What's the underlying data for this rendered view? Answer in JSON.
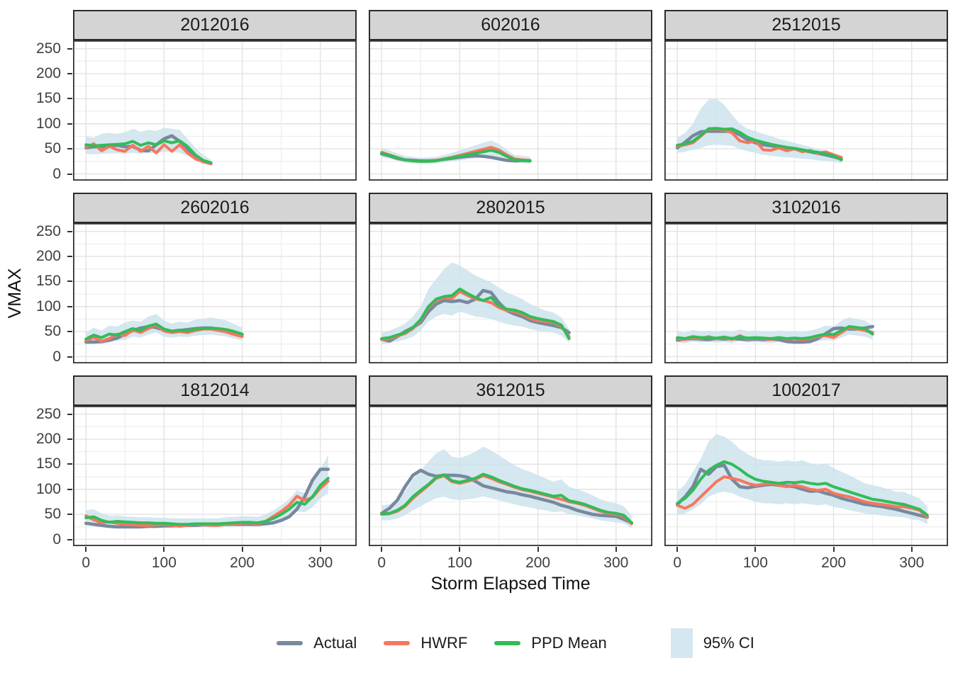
{
  "chart_data": {
    "type": "line",
    "xlabel": "Storm Elapsed Time",
    "ylabel": "VMAX",
    "x_ticks": [
      0,
      100,
      200,
      300
    ],
    "y_ticks": [
      0,
      50,
      100,
      150,
      200,
      250
    ],
    "x_minor_ticks": [
      50,
      150,
      250,
      350
    ],
    "y_minor_ticks": [
      25,
      75,
      125,
      175,
      225
    ],
    "x_domain": [
      -16.5,
      346.5
    ],
    "y_domain": [
      -13.5,
      266.5
    ],
    "grid": true,
    "legend_position": "bottom",
    "series_names": [
      "Actual",
      "HWRF",
      "PPD Mean"
    ],
    "ci_name": "95% CI",
    "colors": {
      "actual": "#78889E",
      "hwrf": "#F8765C",
      "ppd_mean": "#31BC58",
      "ci_fill": "#CAE1EB",
      "ci_legend": "#D5E7F0",
      "strip_bg": "#D4D4D4",
      "strip_border": "#2B2B2B",
      "panel_border": "#333333",
      "grid_major": "#E3E3E3",
      "grid_minor": "#EDEDED",
      "tick_text": "#404040",
      "title_text": "#111111"
    },
    "facets": [
      {
        "title": "2012016",
        "x_start": 0,
        "x_step": 10,
        "actual": [
          52,
          54,
          54,
          56,
          57,
          54,
          55,
          47,
          46,
          58,
          70,
          76,
          65,
          50,
          35,
          26,
          21
        ],
        "hwrf": [
          53,
          60,
          46,
          55,
          48,
          45,
          57,
          45,
          55,
          42,
          58,
          45,
          58,
          42,
          30,
          24,
          20
        ],
        "ppd_mean": [
          58,
          56,
          57,
          58,
          59,
          60,
          65,
          57,
          62,
          58,
          66,
          62,
          66,
          55,
          38,
          27,
          22
        ],
        "ci_lower": [
          40,
          39,
          40,
          41,
          41,
          40,
          42,
          40,
          42,
          41,
          44,
          44,
          42,
          36,
          28,
          22,
          17
        ],
        "ci_upper": [
          75,
          72,
          80,
          82,
          80,
          83,
          90,
          84,
          88,
          86,
          92,
          90,
          88,
          70,
          52,
          38,
          28
        ]
      },
      {
        "title": "602016",
        "x_start": 0,
        "x_step": 10,
        "actual": [
          40,
          36,
          31,
          28,
          27,
          26,
          26,
          27,
          29,
          31,
          33,
          35,
          36,
          35,
          33,
          30,
          27,
          26,
          27,
          26
        ],
        "hwrf": [
          43,
          38,
          33,
          28,
          26,
          25,
          26,
          27,
          30,
          33,
          37,
          41,
          45,
          49,
          53,
          48,
          38,
          30,
          28,
          27
        ],
        "ppd_mean": [
          41,
          37,
          32,
          28,
          26,
          25,
          25,
          26,
          29,
          32,
          35,
          38,
          41,
          44,
          47,
          43,
          35,
          28,
          27,
          26
        ],
        "ci_lower": [
          33,
          30,
          26,
          22,
          21,
          20,
          20,
          21,
          23,
          25,
          27,
          29,
          31,
          33,
          35,
          32,
          27,
          22,
          21,
          20
        ],
        "ci_upper": [
          52,
          47,
          41,
          36,
          34,
          32,
          33,
          34,
          38,
          42,
          47,
          52,
          57,
          62,
          67,
          60,
          48,
          38,
          36,
          34
        ]
      },
      {
        "title": "2512015",
        "x_start": 0,
        "x_step": 10,
        "actual": [
          52,
          63,
          76,
          84,
          85,
          85,
          85,
          85,
          78,
          68,
          62,
          58,
          56,
          54,
          52,
          50,
          47,
          44,
          41,
          38,
          34,
          30
        ],
        "hwrf": [
          55,
          58,
          62,
          75,
          89,
          90,
          87,
          82,
          66,
          62,
          66,
          48,
          47,
          52,
          46,
          50,
          44,
          47,
          41,
          44,
          38,
          33
        ],
        "ppd_mean": [
          57,
          60,
          65,
          77,
          90,
          91,
          89,
          90,
          83,
          73,
          67,
          63,
          59,
          56,
          53,
          51,
          48,
          45,
          43,
          40,
          36,
          28
        ],
        "ci_lower": [
          42,
          44,
          48,
          52,
          57,
          58,
          57,
          56,
          50,
          45,
          42,
          38,
          36,
          34,
          33,
          32,
          30,
          29,
          27,
          26,
          24,
          21
        ],
        "ci_upper": [
          72,
          82,
          100,
          130,
          148,
          150,
          138,
          118,
          100,
          90,
          85,
          80,
          75,
          70,
          66,
          62,
          58,
          54,
          50,
          46,
          42,
          36
        ]
      },
      {
        "title": "2602016",
        "x_start": 0,
        "x_step": 10,
        "actual": [
          29,
          29,
          30,
          33,
          37,
          45,
          52,
          57,
          60,
          58,
          53,
          50,
          52,
          54,
          56,
          57,
          57,
          55,
          52,
          48,
          44
        ],
        "hwrf": [
          32,
          38,
          31,
          36,
          45,
          42,
          53,
          48,
          56,
          63,
          51,
          48,
          50,
          48,
          52,
          55,
          55,
          52,
          49,
          44,
          40
        ],
        "ppd_mean": [
          35,
          43,
          38,
          45,
          43,
          50,
          56,
          52,
          61,
          65,
          55,
          51,
          53,
          51,
          55,
          56,
          57,
          56,
          54,
          50,
          45
        ],
        "ci_lower": [
          25,
          28,
          25,
          28,
          32,
          33,
          40,
          38,
          44,
          48,
          40,
          38,
          40,
          39,
          42,
          43,
          44,
          42,
          40,
          36,
          32
        ],
        "ci_upper": [
          48,
          58,
          52,
          62,
          60,
          68,
          72,
          70,
          80,
          85,
          72,
          66,
          70,
          68,
          74,
          76,
          78,
          75,
          72,
          65,
          58
        ]
      },
      {
        "title": "2802015",
        "x_start": 0,
        "x_step": 10,
        "actual": [
          35,
          31,
          40,
          50,
          58,
          68,
          90,
          105,
          112,
          110,
          112,
          108,
          115,
          132,
          128,
          108,
          92,
          85,
          80,
          72,
          68,
          65,
          62,
          58,
          48
        ],
        "hwrf": [
          34,
          36,
          41,
          46,
          56,
          72,
          98,
          112,
          118,
          116,
          130,
          122,
          115,
          112,
          108,
          98,
          92,
          90,
          85,
          76,
          72,
          70,
          68,
          60,
          40
        ],
        "ppd_mean": [
          36,
          38,
          43,
          48,
          58,
          74,
          100,
          115,
          120,
          122,
          135,
          126,
          118,
          112,
          118,
          102,
          95,
          93,
          88,
          80,
          76,
          73,
          70,
          63,
          36
        ],
        "ci_lower": [
          25,
          27,
          30,
          34,
          40,
          52,
          70,
          80,
          85,
          82,
          90,
          85,
          80,
          78,
          75,
          70,
          65,
          62,
          60,
          55,
          52,
          50,
          48,
          42,
          28
        ],
        "ci_upper": [
          48,
          52,
          58,
          66,
          80,
          100,
          135,
          155,
          175,
          188,
          182,
          172,
          162,
          155,
          148,
          138,
          128,
          122,
          115,
          105,
          98,
          92,
          88,
          78,
          55
        ]
      },
      {
        "title": "3102016",
        "x_start": 0,
        "x_step": 10,
        "actual": [
          33,
          35,
          36,
          35,
          34,
          36,
          35,
          36,
          35,
          34,
          35,
          34,
          35,
          34,
          30,
          29,
          29,
          30,
          36,
          46,
          56,
          57,
          55,
          55,
          57,
          60
        ],
        "hwrf": [
          36,
          34,
          38,
          36,
          40,
          35,
          38,
          34,
          42,
          35,
          38,
          36,
          34,
          38,
          35,
          36,
          34,
          36,
          40,
          42,
          38,
          48,
          58,
          55,
          52,
          48
        ],
        "ppd_mean": [
          38,
          36,
          40,
          38,
          38,
          37,
          39,
          36,
          40,
          37,
          38,
          37,
          36,
          38,
          36,
          37,
          36,
          38,
          42,
          45,
          44,
          52,
          60,
          58,
          56,
          45
        ],
        "ci_lower": [
          28,
          27,
          30,
          28,
          29,
          28,
          29,
          27,
          31,
          28,
          29,
          28,
          27,
          29,
          27,
          28,
          27,
          28,
          31,
          33,
          32,
          38,
          44,
          42,
          40,
          34
        ],
        "ci_upper": [
          50,
          48,
          53,
          50,
          52,
          50,
          52,
          49,
          55,
          50,
          52,
          50,
          49,
          52,
          50,
          51,
          49,
          52,
          56,
          62,
          60,
          72,
          78,
          75,
          72,
          62
        ]
      },
      {
        "title": "1812014",
        "x_start": 0,
        "x_step": 10,
        "actual": [
          32,
          30,
          28,
          26,
          25,
          25,
          25,
          25,
          26,
          26,
          27,
          27,
          28,
          28,
          28,
          29,
          29,
          30,
          30,
          30,
          30,
          30,
          30,
          31,
          33,
          38,
          45,
          60,
          85,
          118,
          140,
          140
        ],
        "hwrf": [
          47,
          39,
          33,
          35,
          32,
          30,
          29,
          28,
          28,
          29,
          30,
          28,
          26,
          28,
          30,
          29,
          28,
          28,
          30,
          31,
          32,
          33,
          31,
          36,
          46,
          56,
          68,
          86,
          78,
          84,
          102,
          116
        ],
        "ppd_mean": [
          43,
          45,
          38,
          34,
          36,
          35,
          34,
          33,
          33,
          32,
          32,
          31,
          30,
          30,
          31,
          31,
          31,
          31,
          32,
          33,
          34,
          34,
          33,
          36,
          42,
          50,
          60,
          74,
          70,
          85,
          108,
          122
        ],
        "ci_lower": [
          33,
          34,
          30,
          27,
          28,
          27,
          26,
          26,
          26,
          25,
          25,
          24,
          24,
          24,
          24,
          24,
          24,
          24,
          25,
          26,
          26,
          26,
          25,
          28,
          32,
          38,
          46,
          56,
          54,
          64,
          82,
          92
        ],
        "ci_upper": [
          58,
          60,
          52,
          47,
          48,
          46,
          45,
          44,
          44,
          43,
          43,
          42,
          42,
          42,
          42,
          42,
          42,
          42,
          44,
          45,
          46,
          46,
          45,
          50,
          58,
          68,
          80,
          98,
          92,
          112,
          140,
          168
        ]
      },
      {
        "title": "3612015",
        "x_start": 0,
        "x_step": 10,
        "actual": [
          52,
          62,
          78,
          105,
          128,
          138,
          130,
          126,
          128,
          128,
          127,
          124,
          116,
          107,
          103,
          99,
          95,
          93,
          89,
          86,
          82,
          78,
          74,
          68,
          64,
          58,
          54,
          50,
          48,
          47,
          46,
          40,
          33
        ],
        "hwrf": [
          50,
          51,
          56,
          66,
          82,
          95,
          108,
          122,
          127,
          115,
          112,
          116,
          120,
          127,
          122,
          115,
          110,
          104,
          99,
          96,
          92,
          88,
          84,
          80,
          75,
          72,
          68,
          62,
          56,
          52,
          50,
          46,
          31
        ],
        "ppd_mean": [
          51,
          52,
          58,
          68,
          85,
          98,
          110,
          124,
          129,
          117,
          114,
          118,
          122,
          130,
          125,
          118,
          112,
          106,
          101,
          98,
          94,
          90,
          86,
          88,
          77,
          74,
          70,
          64,
          58,
          54,
          52,
          48,
          33
        ],
        "ci_lower": [
          38,
          38,
          42,
          48,
          58,
          66,
          75,
          82,
          85,
          80,
          78,
          80,
          82,
          86,
          82,
          78,
          74,
          70,
          66,
          64,
          60,
          58,
          54,
          56,
          50,
          48,
          45,
          42,
          38,
          36,
          34,
          32,
          22
        ],
        "ci_upper": [
          68,
          70,
          80,
          95,
          120,
          138,
          155,
          172,
          180,
          165,
          162,
          168,
          175,
          185,
          178,
          168,
          158,
          148,
          140,
          135,
          128,
          122,
          115,
          120,
          105,
          100,
          95,
          88,
          80,
          75,
          72,
          66,
          48
        ]
      },
      {
        "title": "1002017",
        "x_start": 0,
        "x_step": 10,
        "actual": [
          70,
          85,
          105,
          140,
          130,
          145,
          148,
          120,
          105,
          103,
          106,
          108,
          110,
          108,
          107,
          105,
          100,
          96,
          97,
          92,
          88,
          82,
          78,
          74,
          70,
          68,
          66,
          63,
          60,
          56,
          52,
          48,
          44
        ],
        "hwrf": [
          68,
          62,
          70,
          85,
          100,
          115,
          125,
          122,
          118,
          112,
          108,
          110,
          112,
          108,
          105,
          108,
          105,
          100,
          98,
          100,
          92,
          88,
          85,
          80,
          75,
          72,
          70,
          68,
          65,
          65,
          62,
          58,
          44
        ],
        "ppd_mean": [
          72,
          82,
          98,
          120,
          138,
          148,
          155,
          150,
          140,
          128,
          120,
          116,
          114,
          112,
          114,
          113,
          115,
          112,
          110,
          112,
          105,
          100,
          95,
          90,
          85,
          80,
          78,
          75,
          72,
          70,
          65,
          60,
          48
        ],
        "ci_lower": [
          48,
          52,
          60,
          70,
          85,
          92,
          95,
          92,
          85,
          80,
          75,
          72,
          72,
          70,
          72,
          70,
          72,
          70,
          68,
          70,
          65,
          62,
          58,
          55,
          52,
          50,
          48,
          46,
          45,
          44,
          40,
          38,
          30
        ],
        "ci_upper": [
          95,
          110,
          135,
          160,
          195,
          210,
          205,
          195,
          180,
          170,
          162,
          158,
          158,
          155,
          158,
          155,
          158,
          152,
          148,
          152,
          142,
          135,
          128,
          120,
          112,
          108,
          105,
          100,
          95,
          95,
          88,
          82,
          65
        ]
      }
    ]
  }
}
